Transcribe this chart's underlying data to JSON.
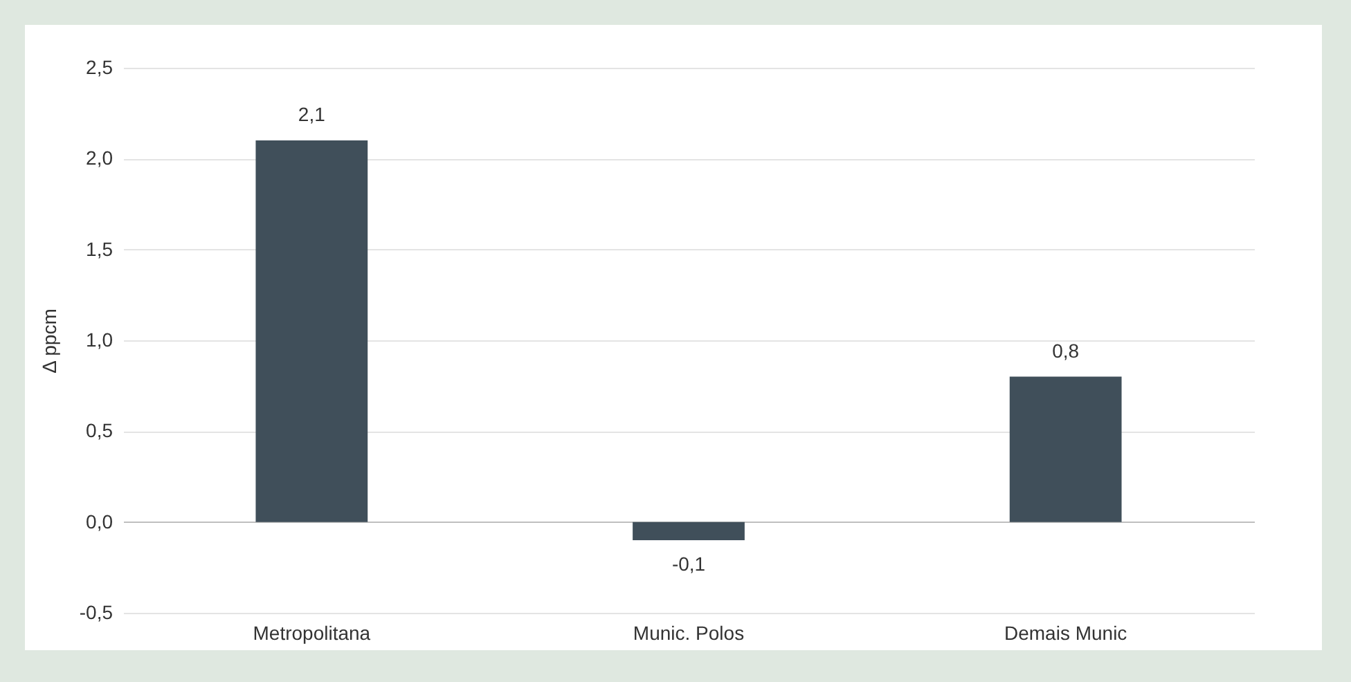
{
  "chart_data": {
    "type": "bar",
    "ylabel": "Δ ppcm",
    "categories": [
      "Metropolitana",
      "Munic. Polos",
      "Demais Munic"
    ],
    "values": [
      2.1,
      -0.1,
      0.8
    ],
    "color": "#404f5a",
    "value_labels": [
      "2,1",
      "-0,1",
      "0,8"
    ],
    "ylim": [
      -0.5,
      2.5
    ],
    "yticks": [
      {
        "value": -0.5,
        "label": "-0,5"
      },
      {
        "value": 0,
        "label": "0,0"
      },
      {
        "value": 0.5,
        "label": "0,5"
      },
      {
        "value": 1,
        "label": "1,0"
      },
      {
        "value": 1.5,
        "label": "1,5"
      },
      {
        "value": 2,
        "label": "2,0"
      },
      {
        "value": 2.5,
        "label": "2,5"
      }
    ],
    "grid": "y"
  }
}
